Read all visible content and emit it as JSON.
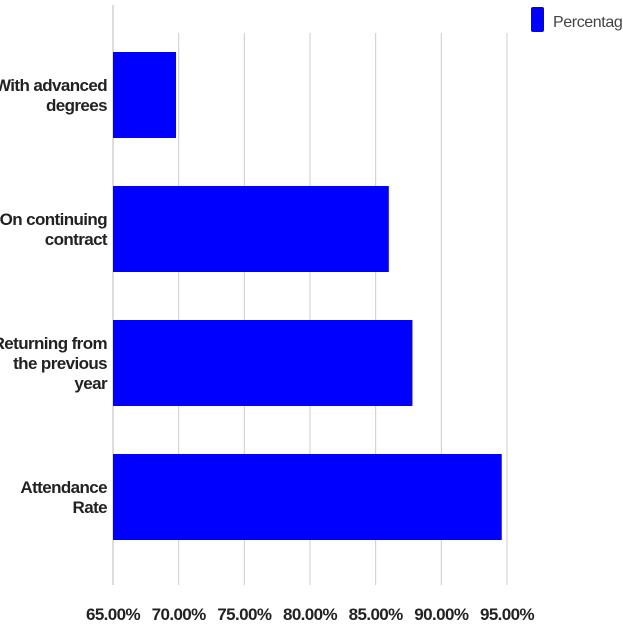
{
  "chart_data": {
    "type": "bar",
    "orientation": "horizontal",
    "categories": [
      "With advanced degrees",
      "On continuing contract",
      "Returning from the previous year",
      "Attendance Rate"
    ],
    "category_lines": [
      [
        "With advanced",
        "degrees"
      ],
      [
        "On continuing",
        "contract"
      ],
      [
        "Returning from",
        "the previous",
        "year"
      ],
      [
        "Attendance",
        "Rate"
      ]
    ],
    "series": [
      {
        "name": "Percentage",
        "values": [
          69.8,
          86.0,
          87.8,
          94.6
        ],
        "color": "#0000ff"
      }
    ],
    "xlim": [
      65,
      95
    ],
    "x_ticks": [
      65,
      70,
      75,
      80,
      85,
      90,
      95
    ],
    "x_tick_labels": [
      "65.00%",
      "70.00%",
      "75.00%",
      "80.00%",
      "85.00%",
      "90.00%",
      "95.00%"
    ],
    "grid": true,
    "gridline_color": "#cccccc",
    "legend": {
      "position": "top-right",
      "entries": [
        "Percentage"
      ]
    },
    "title": "",
    "xlabel": "",
    "ylabel": ""
  }
}
